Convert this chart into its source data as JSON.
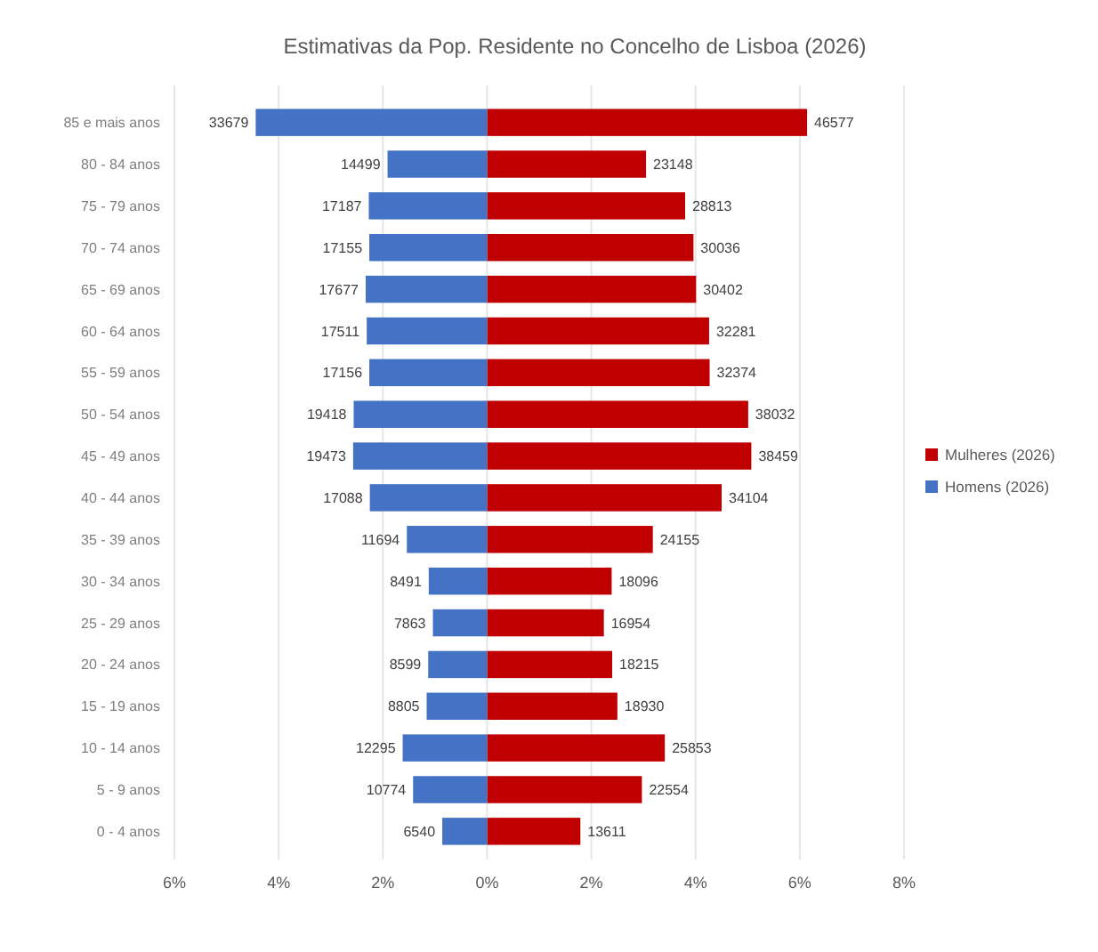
{
  "chart_data": {
    "type": "bar",
    "orientation": "horizontal",
    "stacked": true,
    "title": "Estimativas da Pop. Residente no Concelho de Lisboa (2026)",
    "categories": [
      "85 e mais anos",
      "80 - 84 anos",
      "75 - 79 anos",
      "70 - 74 anos",
      "65 - 69 anos",
      "60 - 64 anos",
      "55 - 59 anos",
      "50 - 54 anos",
      "45 - 49 anos",
      "40 - 44 anos",
      "35 - 39 anos",
      "30 - 34 anos",
      "25 - 29 anos",
      "20 - 24 anos",
      "15 - 19 anos",
      "10 - 14 anos",
      "5 - 9 anos",
      "0 - 4 anos"
    ],
    "series": [
      {
        "name": "Mulheres (2026)",
        "color": "#c00000",
        "values": [
          6.14,
          3.05,
          3.8,
          3.96,
          4.01,
          4.26,
          4.27,
          5.01,
          5.07,
          4.5,
          3.18,
          2.39,
          2.24,
          2.4,
          2.5,
          3.41,
          2.97,
          1.79
        ]
      },
      {
        "name": "Homens (2026)",
        "color": "#4472c4",
        "values": [
          -4.44,
          -1.91,
          -2.27,
          -2.26,
          -2.33,
          -2.31,
          -2.26,
          -2.56,
          -2.57,
          -2.25,
          -1.54,
          -1.12,
          -1.04,
          -1.13,
          -1.16,
          -1.62,
          -1.42,
          -0.86
        ]
      }
    ],
    "annotations": [
      {
        "text": "46577",
        "x": 6.14,
        "y": "85 e mais anos"
      },
      {
        "text": "23148",
        "x": 3.05,
        "y": "80 - 84 anos"
      },
      {
        "text": "28813",
        "x": 3.8,
        "y": "75 - 79 anos"
      },
      {
        "text": "30036",
        "x": 3.96,
        "y": "70 - 74 anos"
      },
      {
        "text": "30402",
        "x": 4.01,
        "y": "65 - 69 anos"
      },
      {
        "text": "32281",
        "x": 4.26,
        "y": "60 - 64 anos"
      },
      {
        "text": "32374",
        "x": 4.27,
        "y": "55 - 59 anos"
      },
      {
        "text": "38032",
        "x": 5.01,
        "y": "50 - 54 anos"
      },
      {
        "text": "38459",
        "x": 5.07,
        "y": "45 - 49 anos"
      },
      {
        "text": "34104",
        "x": 4.5,
        "y": "40 - 44 anos"
      },
      {
        "text": "24155",
        "x": 3.18,
        "y": "35 - 39 anos"
      },
      {
        "text": "18096",
        "x": 2.39,
        "y": "30 - 34 anos"
      },
      {
        "text": "16954",
        "x": 2.24,
        "y": "25 - 29 anos"
      },
      {
        "text": "18215",
        "x": 2.4,
        "y": "20 - 24 anos"
      },
      {
        "text": "18930",
        "x": 2.5,
        "y": "15 - 19 anos"
      },
      {
        "text": "25853",
        "x": 3.41,
        "y": "10 - 14 anos"
      },
      {
        "text": "22554",
        "x": 2.97,
        "y": "5 - 9 anos"
      },
      {
        "text": "13611",
        "x": 1.79,
        "y": "0 - 4 anos"
      },
      {
        "text": "33679",
        "x": -4.44,
        "y": "85 e mais anos"
      },
      {
        "text": "14499",
        "x": -1.91,
        "y": "80 - 84 anos"
      },
      {
        "text": "17187",
        "x": -2.27,
        "y": "75 - 79 anos"
      },
      {
        "text": "17155",
        "x": -2.26,
        "y": "70 - 74 anos"
      },
      {
        "text": "17677",
        "x": -2.33,
        "y": "65 - 69 anos"
      },
      {
        "text": "17511",
        "x": -2.31,
        "y": "60 - 64 anos"
      },
      {
        "text": "17156",
        "x": -2.26,
        "y": "55 - 59 anos"
      },
      {
        "text": "19418",
        "x": -2.56,
        "y": "50 - 54 anos"
      },
      {
        "text": "19473",
        "x": -2.57,
        "y": "45 - 49 anos"
      },
      {
        "text": "17088",
        "x": -2.25,
        "y": "40 - 44 anos"
      },
      {
        "text": "11694",
        "x": -1.54,
        "y": "35 - 39 anos"
      },
      {
        "text": "8491",
        "x": -1.12,
        "y": "30 - 34 anos"
      },
      {
        "text": "7863",
        "x": -1.04,
        "y": "25 - 29 anos"
      },
      {
        "text": "8599",
        "x": -1.13,
        "y": "20 - 24 anos"
      },
      {
        "text": "8805",
        "x": -1.16,
        "y": "15 - 19 anos"
      },
      {
        "text": "12295",
        "x": -1.62,
        "y": "10 - 14 anos"
      },
      {
        "text": "10774",
        "x": -1.42,
        "y": "5 - 9 anos"
      },
      {
        "text": "6540",
        "x": -0.86,
        "y": "0 - 4 anos"
      }
    ],
    "xlim": [
      -6,
      8
    ],
    "xticks": [
      {
        "value": -6,
        "label": "6%"
      },
      {
        "value": -4,
        "label": "4%"
      },
      {
        "value": -2,
        "label": "2%"
      },
      {
        "value": 0,
        "label": "0%"
      },
      {
        "value": 2,
        "label": "2%"
      },
      {
        "value": 4,
        "label": "4%"
      },
      {
        "value": 6,
        "label": "6%"
      },
      {
        "value": 8,
        "label": "8%"
      }
    ],
    "grid": "x",
    "legend": "right"
  }
}
